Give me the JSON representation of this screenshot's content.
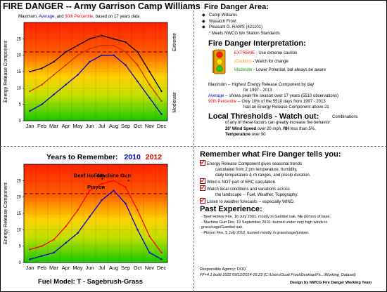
{
  "top_chart": {
    "title": "FIRE DANGER -- Army Garrison Camp Williams",
    "subtitle_prefix": "Maximum,",
    "subtitle_avg": "Average,",
    "subtitle_and": "and",
    "subtitle_p90": "90th Percentile",
    "subtitle_suffix": ", based on 17 years data",
    "ylabel": "Energy Release Component",
    "right_top_label": "Extreme",
    "right_bottom_label": "Moderate"
  },
  "bottom_chart": {
    "years_label": "Years to Remember:",
    "year1": "2010",
    "year2": "2012",
    "ylabel": "Energy Release Component",
    "fuel_model": "Fuel Model:  T - Sagebrush-Grass",
    "ann_beef": "Beef Hollow",
    "ann_machine": "Machine Gun",
    "ann_pinyon": "Pinyon"
  },
  "chart_data": [
    {
      "type": "line",
      "title": "FIRE DANGER -- Army Garrison Camp Williams",
      "ylabel": "Energy Release Component",
      "categories": [
        "Jan",
        "Feb",
        "Mar",
        "Apr",
        "May",
        "Jun",
        "Jul",
        "Aug",
        "Sep",
        "Oct",
        "Nov",
        "Dec"
      ],
      "ylim": [
        0,
        30
      ],
      "yticks": [
        0,
        5,
        10,
        15,
        20,
        25
      ],
      "reference_line": 21,
      "series": [
        {
          "name": "Maximum",
          "color": "#000000",
          "values": [
            15,
            16,
            18,
            21,
            23,
            25,
            26,
            25,
            24,
            21,
            15,
            9
          ]
        },
        {
          "name": "Average",
          "color": "#0000cc",
          "values": [
            3,
            5,
            8,
            11,
            14,
            18,
            20,
            20,
            17,
            12,
            7,
            2
          ]
        },
        {
          "name": "90th Percentile",
          "color": "#cc3300",
          "values": [
            9,
            11,
            14,
            17,
            20,
            22,
            23,
            23,
            21,
            17,
            11,
            6
          ]
        }
      ]
    },
    {
      "type": "line",
      "title": "Years to Remember: 2010 2012",
      "ylabel": "Energy Release Component",
      "categories": [
        "Jan",
        "Feb",
        "Mar",
        "Apr",
        "May",
        "Jun",
        "Jul",
        "Aug",
        "Sep",
        "Oct",
        "Nov",
        "Dec"
      ],
      "ylim": [
        0,
        30
      ],
      "yticks": [
        0,
        5,
        10,
        15,
        20,
        25
      ],
      "reference_line": 21,
      "series": [
        {
          "name": "2010",
          "color": "#0000cc",
          "values": [
            1,
            2,
            3,
            6,
            9,
            14,
            19,
            22,
            18,
            10,
            3,
            1
          ]
        },
        {
          "name": "2012",
          "color": "#ff0000",
          "values": [
            4,
            5,
            7,
            11,
            16,
            22,
            24,
            25,
            23,
            16,
            8,
            3
          ]
        }
      ]
    }
  ],
  "area": {
    "header": "Fire Danger Area:",
    "items": [
      "Camp Williams",
      "Wasatch Front",
      "Pleasant G.  RAWS (421101)"
    ],
    "note": "* Meets NWCG Wx Station Standards"
  },
  "interp": {
    "header": "Fire Danger Interpretation:",
    "extreme_word": "EXTREME",
    "extreme_text": " - Use extreme caution",
    "caution_word": "(Caution)",
    "caution_text": " - Watch for change",
    "moderate_word": "Moderate",
    "moderate_text": " - Lower Potential, but always be aware"
  },
  "legend": {
    "max_word": "Maximum",
    "max_text": " -- Highest Energy Release Component by day",
    "max_text2": "for 1997 - 2013",
    "avg_word": "Average",
    "avg_text": " -- shows peak fire season over 17 years (5510 observations)",
    "p90_word": "90th Percentile",
    "p90_text": " -- Only 10% of the 5510 days from 1997 - 2013",
    "p90_text2": "had an Energy Release Component above 21"
  },
  "thresholds": {
    "header": "Local Thresholds - Watch out:",
    "line1": "Combinations",
    "line2": "of any of these factors can greatly increase fire behavior:",
    "wind_label": "20' Wind Speed",
    "wind_text": " over 20 mph, ",
    "rh_label": "RH",
    "rh_text": "  less than 5%,",
    "temp_label": "Temperature",
    "temp_text": " over 90"
  },
  "remember": {
    "header": "Remember what Fire Danger tells you:",
    "items": [
      "Energy Release Component gives seasonal trends",
      "calculated from 2 pm temperature, humidity,",
      "daily temperature & rh ranges, and precip duration.",
      "Wind is NOT part of ERC calculation.",
      "Watch local conditions and variations across",
      "the landscape -- Fuel, Weather, Topography.",
      "Listen to weather forecasts -- especially WIND."
    ]
  },
  "past": {
    "header": "Past Experience:",
    "items": [
      "- Beef Hollow Fire, 16 July 2001, mostly in Gambel oak, NE portion of base.",
      "- Machine Gun Fire, 19 September 2010, burned under very high winds in",
      "grass/sage/Gambel oak.",
      "- Pinyon Fire, 5 July 2012, burned mostly in grass/sage/juniper."
    ]
  },
  "footer": {
    "agency": "Responsible Agency: DOD",
    "build": "FF+4.1 build 1622 09/12/2014-16:23 (C:\\Users\\Scott Frost\\Desktop\\Fir...\\Working_Dataset)",
    "credit": "Design by NWCG Fire Danger Working Team"
  }
}
